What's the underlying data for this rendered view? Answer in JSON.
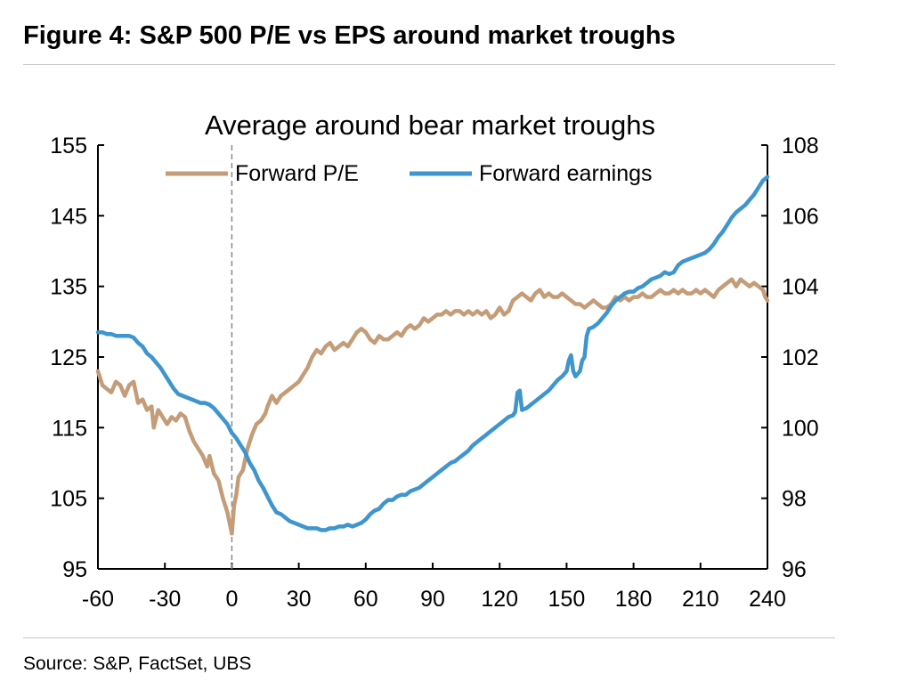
{
  "figure": {
    "title": "Figure 4: S&P 500 P/E vs EPS around market troughs",
    "source": "Source: S&P, FactSet, UBS"
  },
  "chart_data": {
    "type": "line",
    "title": "Average around bear market troughs",
    "xlabel": "",
    "ylabel_left": "",
    "ylabel_right": "",
    "x_range": [
      -60,
      240
    ],
    "x_ticks": [
      -60,
      -30,
      0,
      30,
      60,
      90,
      120,
      150,
      180,
      210,
      240
    ],
    "y_left_range": [
      95,
      155
    ],
    "y_left_ticks": [
      95,
      105,
      115,
      125,
      135,
      145,
      155
    ],
    "y_right_range": [
      96,
      108
    ],
    "y_right_ticks": [
      96,
      98,
      100,
      102,
      104,
      106,
      108
    ],
    "reference_line": {
      "x": 0,
      "style": "dashed"
    },
    "legend_position": "top",
    "grid": false,
    "series": [
      {
        "name": "Forward P/E",
        "axis": "left",
        "color": "#c49c78",
        "points": [
          [
            -60,
            123
          ],
          [
            -58,
            121
          ],
          [
            -56,
            120.5
          ],
          [
            -54,
            120
          ],
          [
            -52,
            121.5
          ],
          [
            -50,
            121
          ],
          [
            -48,
            119.5
          ],
          [
            -46,
            121
          ],
          [
            -44,
            121.5
          ],
          [
            -42,
            118.5
          ],
          [
            -40,
            119
          ],
          [
            -38,
            117.5
          ],
          [
            -36,
            118
          ],
          [
            -35,
            115
          ],
          [
            -33,
            117.5
          ],
          [
            -31,
            116.5
          ],
          [
            -29,
            115.5
          ],
          [
            -27,
            116.5
          ],
          [
            -25,
            116
          ],
          [
            -23,
            117
          ],
          [
            -21,
            116.5
          ],
          [
            -19,
            114.5
          ],
          [
            -17,
            113
          ],
          [
            -15,
            112
          ],
          [
            -13,
            111
          ],
          [
            -11,
            109.5
          ],
          [
            -10,
            111
          ],
          [
            -8,
            108.5
          ],
          [
            -6,
            107.5
          ],
          [
            -4,
            105
          ],
          [
            -2,
            103
          ],
          [
            -1,
            101.5
          ],
          [
            0,
            100
          ],
          [
            1,
            104
          ],
          [
            2,
            105.5
          ],
          [
            3,
            108
          ],
          [
            5,
            109
          ],
          [
            7,
            112
          ],
          [
            9,
            114
          ],
          [
            11,
            115.5
          ],
          [
            13,
            116
          ],
          [
            15,
            117
          ],
          [
            16,
            118
          ],
          [
            18,
            119.5
          ],
          [
            20,
            118.5
          ],
          [
            22,
            119.5
          ],
          [
            24,
            120
          ],
          [
            26,
            120.5
          ],
          [
            28,
            121
          ],
          [
            30,
            121.5
          ],
          [
            32,
            122.5
          ],
          [
            34,
            123.5
          ],
          [
            36,
            125
          ],
          [
            38,
            126
          ],
          [
            40,
            125.5
          ],
          [
            42,
            126.5
          ],
          [
            44,
            127
          ],
          [
            46,
            126
          ],
          [
            48,
            126.5
          ],
          [
            50,
            127
          ],
          [
            52,
            126.5
          ],
          [
            54,
            127.5
          ],
          [
            56,
            128.5
          ],
          [
            58,
            129
          ],
          [
            60,
            128.5
          ],
          [
            62,
            127.5
          ],
          [
            64,
            127
          ],
          [
            66,
            128
          ],
          [
            68,
            127.5
          ],
          [
            70,
            127.5
          ],
          [
            72,
            128
          ],
          [
            74,
            128.5
          ],
          [
            76,
            128
          ],
          [
            78,
            129
          ],
          [
            80,
            129.5
          ],
          [
            82,
            129
          ],
          [
            84,
            129.5
          ],
          [
            86,
            130.5
          ],
          [
            88,
            130
          ],
          [
            90,
            130.5
          ],
          [
            92,
            131
          ],
          [
            94,
            131
          ],
          [
            96,
            131.5
          ],
          [
            98,
            131
          ],
          [
            100,
            131.5
          ],
          [
            102,
            131.5
          ],
          [
            104,
            131
          ],
          [
            106,
            131.5
          ],
          [
            108,
            131
          ],
          [
            110,
            131.5
          ],
          [
            112,
            131
          ],
          [
            114,
            131.5
          ],
          [
            116,
            130.5
          ],
          [
            118,
            131
          ],
          [
            120,
            132
          ],
          [
            122,
            131
          ],
          [
            124,
            131.5
          ],
          [
            126,
            133
          ],
          [
            128,
            133.5
          ],
          [
            130,
            134
          ],
          [
            132,
            133.5
          ],
          [
            134,
            133
          ],
          [
            136,
            134
          ],
          [
            138,
            134.5
          ],
          [
            140,
            133.5
          ],
          [
            142,
            134
          ],
          [
            144,
            133.5
          ],
          [
            146,
            133.5
          ],
          [
            148,
            134
          ],
          [
            150,
            133.5
          ],
          [
            152,
            133
          ],
          [
            154,
            132.5
          ],
          [
            156,
            132.5
          ],
          [
            158,
            132
          ],
          [
            160,
            132.5
          ],
          [
            162,
            133
          ],
          [
            164,
            132.5
          ],
          [
            166,
            132
          ],
          [
            168,
            132
          ],
          [
            170,
            132.5
          ],
          [
            172,
            133.5
          ],
          [
            174,
            133
          ],
          [
            176,
            133.5
          ],
          [
            178,
            133
          ],
          [
            180,
            133.5
          ],
          [
            182,
            133.5
          ],
          [
            184,
            134
          ],
          [
            186,
            133.5
          ],
          [
            188,
            133.5
          ],
          [
            190,
            134
          ],
          [
            192,
            134.5
          ],
          [
            194,
            134
          ],
          [
            196,
            134
          ],
          [
            198,
            134.5
          ],
          [
            200,
            134
          ],
          [
            202,
            134.5
          ],
          [
            204,
            134
          ],
          [
            206,
            134
          ],
          [
            208,
            134.5
          ],
          [
            210,
            134
          ],
          [
            212,
            134.5
          ],
          [
            214,
            134
          ],
          [
            216,
            133.5
          ],
          [
            218,
            134.5
          ],
          [
            220,
            135
          ],
          [
            222,
            135.5
          ],
          [
            224,
            136
          ],
          [
            226,
            135
          ],
          [
            228,
            136
          ],
          [
            230,
            135.5
          ],
          [
            232,
            135
          ],
          [
            234,
            135.5
          ],
          [
            236,
            135
          ],
          [
            238,
            134.5
          ],
          [
            239,
            133.5
          ],
          [
            240,
            133
          ]
        ]
      },
      {
        "name": "Forward earnings",
        "axis": "right",
        "color": "#3f95cd",
        "points": [
          [
            -60,
            102.7
          ],
          [
            -58,
            102.7
          ],
          [
            -56,
            102.65
          ],
          [
            -54,
            102.65
          ],
          [
            -52,
            102.6
          ],
          [
            -50,
            102.6
          ],
          [
            -48,
            102.6
          ],
          [
            -46,
            102.6
          ],
          [
            -44,
            102.55
          ],
          [
            -42,
            102.4
          ],
          [
            -40,
            102.3
          ],
          [
            -38,
            102.1
          ],
          [
            -36,
            102.0
          ],
          [
            -34,
            101.85
          ],
          [
            -32,
            101.7
          ],
          [
            -30,
            101.5
          ],
          [
            -28,
            101.3
          ],
          [
            -26,
            101.1
          ],
          [
            -24,
            100.95
          ],
          [
            -22,
            100.9
          ],
          [
            -20,
            100.85
          ],
          [
            -18,
            100.8
          ],
          [
            -16,
            100.75
          ],
          [
            -14,
            100.7
          ],
          [
            -12,
            100.7
          ],
          [
            -10,
            100.65
          ],
          [
            -8,
            100.55
          ],
          [
            -6,
            100.4
          ],
          [
            -4,
            100.25
          ],
          [
            -2,
            100.1
          ],
          [
            0,
            99.85
          ],
          [
            2,
            99.7
          ],
          [
            4,
            99.5
          ],
          [
            6,
            99.3
          ],
          [
            8,
            99.0
          ],
          [
            10,
            98.8
          ],
          [
            12,
            98.5
          ],
          [
            14,
            98.3
          ],
          [
            16,
            98.05
          ],
          [
            18,
            97.8
          ],
          [
            20,
            97.6
          ],
          [
            22,
            97.55
          ],
          [
            24,
            97.45
          ],
          [
            26,
            97.35
          ],
          [
            28,
            97.3
          ],
          [
            30,
            97.25
          ],
          [
            32,
            97.2
          ],
          [
            34,
            97.15
          ],
          [
            36,
            97.15
          ],
          [
            38,
            97.15
          ],
          [
            40,
            97.1
          ],
          [
            42,
            97.1
          ],
          [
            44,
            97.15
          ],
          [
            46,
            97.15
          ],
          [
            48,
            97.2
          ],
          [
            50,
            97.2
          ],
          [
            52,
            97.25
          ],
          [
            54,
            97.2
          ],
          [
            56,
            97.25
          ],
          [
            58,
            97.3
          ],
          [
            60,
            97.4
          ],
          [
            62,
            97.55
          ],
          [
            64,
            97.65
          ],
          [
            66,
            97.7
          ],
          [
            68,
            97.85
          ],
          [
            70,
            97.95
          ],
          [
            72,
            97.95
          ],
          [
            74,
            98.05
          ],
          [
            76,
            98.1
          ],
          [
            78,
            98.1
          ],
          [
            80,
            98.2
          ],
          [
            82,
            98.25
          ],
          [
            84,
            98.3
          ],
          [
            86,
            98.4
          ],
          [
            88,
            98.5
          ],
          [
            90,
            98.6
          ],
          [
            92,
            98.7
          ],
          [
            94,
            98.8
          ],
          [
            96,
            98.9
          ],
          [
            98,
            99.0
          ],
          [
            100,
            99.05
          ],
          [
            102,
            99.15
          ],
          [
            104,
            99.25
          ],
          [
            106,
            99.35
          ],
          [
            108,
            99.5
          ],
          [
            110,
            99.6
          ],
          [
            112,
            99.7
          ],
          [
            114,
            99.8
          ],
          [
            116,
            99.9
          ],
          [
            118,
            100.0
          ],
          [
            120,
            100.1
          ],
          [
            122,
            100.2
          ],
          [
            124,
            100.3
          ],
          [
            126,
            100.35
          ],
          [
            127,
            100.45
          ],
          [
            128,
            101.0
          ],
          [
            129,
            101.05
          ],
          [
            130,
            100.5
          ],
          [
            132,
            100.55
          ],
          [
            134,
            100.65
          ],
          [
            136,
            100.75
          ],
          [
            138,
            100.85
          ],
          [
            140,
            100.95
          ],
          [
            142,
            101.05
          ],
          [
            144,
            101.2
          ],
          [
            146,
            101.35
          ],
          [
            148,
            101.45
          ],
          [
            150,
            101.6
          ],
          [
            151,
            101.9
          ],
          [
            152,
            102.05
          ],
          [
            153,
            101.6
          ],
          [
            154,
            101.45
          ],
          [
            156,
            101.6
          ],
          [
            157,
            101.9
          ],
          [
            158,
            102.0
          ],
          [
            159,
            102.6
          ],
          [
            160,
            102.8
          ],
          [
            162,
            102.85
          ],
          [
            164,
            102.95
          ],
          [
            166,
            103.1
          ],
          [
            168,
            103.25
          ],
          [
            170,
            103.45
          ],
          [
            172,
            103.6
          ],
          [
            174,
            103.7
          ],
          [
            176,
            103.8
          ],
          [
            178,
            103.85
          ],
          [
            180,
            103.85
          ],
          [
            182,
            103.95
          ],
          [
            184,
            104.0
          ],
          [
            186,
            104.1
          ],
          [
            188,
            104.2
          ],
          [
            190,
            104.25
          ],
          [
            192,
            104.3
          ],
          [
            194,
            104.4
          ],
          [
            196,
            104.35
          ],
          [
            198,
            104.4
          ],
          [
            200,
            104.6
          ],
          [
            202,
            104.7
          ],
          [
            204,
            104.75
          ],
          [
            206,
            104.8
          ],
          [
            208,
            104.85
          ],
          [
            210,
            104.9
          ],
          [
            212,
            104.95
          ],
          [
            214,
            105.05
          ],
          [
            216,
            105.2
          ],
          [
            218,
            105.4
          ],
          [
            220,
            105.55
          ],
          [
            222,
            105.75
          ],
          [
            224,
            105.95
          ],
          [
            226,
            106.1
          ],
          [
            228,
            106.2
          ],
          [
            230,
            106.3
          ],
          [
            232,
            106.45
          ],
          [
            234,
            106.6
          ],
          [
            236,
            106.8
          ],
          [
            238,
            107.0
          ],
          [
            240,
            107.1
          ]
        ]
      }
    ]
  }
}
